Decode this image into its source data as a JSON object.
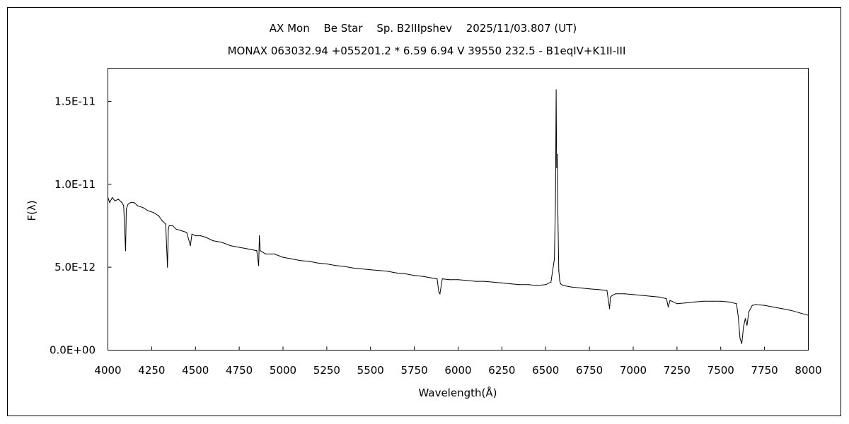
{
  "chart_data": {
    "type": "line",
    "title": "AX Mon　 Be Star　 Sp. B2IIIpshev　 2025/11/03.807 (UT)",
    "subtitle": "MONAX 063032.94 +055201.2 * 6.59 6.94 V 39550 232.5 - B1eqIV+K1II-III",
    "xlabel": "Wavelength(Å)",
    "ylabel": "F(λ)",
    "xlim": [
      4000,
      8000
    ],
    "ylim": [
      0,
      1.7e-11
    ],
    "xticks": [
      4000,
      4250,
      4500,
      4750,
      5000,
      5250,
      5500,
      5750,
      6000,
      6250,
      6500,
      6750,
      7000,
      7250,
      7500,
      7750,
      8000
    ],
    "xtick_labels": [
      "4000",
      "4250",
      "4500",
      "4750",
      "5000",
      "5250",
      "5500",
      "5750",
      "6000",
      "6250",
      "6500",
      "6750",
      "7000",
      "7250",
      "7500",
      "7750",
      "8000"
    ],
    "yticks": [
      0,
      5e-12,
      1e-11,
      1.5e-11
    ],
    "ytick_labels": [
      "0.0E+00",
      "5.0E-12",
      "1.0E-11",
      "1.5E-11"
    ],
    "grid": false,
    "series": [
      {
        "x": [
          4000,
          4010,
          4025,
          4040,
          4060,
          4080,
          4090,
          4101,
          4105,
          4115,
          4130,
          4150,
          4170,
          4200,
          4230,
          4260,
          4290,
          4310,
          4330,
          4340,
          4345,
          4350,
          4370,
          4390,
          4420,
          4450,
          4471,
          4480,
          4500,
          4530,
          4560,
          4600,
          4650,
          4700,
          4750,
          4800,
          4850,
          4861,
          4865,
          4870,
          4900,
          4950,
          5000,
          5050,
          5100,
          5150,
          5200,
          5250,
          5300,
          5350,
          5400,
          5450,
          5500,
          5550,
          5600,
          5650,
          5700,
          5750,
          5800,
          5850,
          5880,
          5890,
          5896,
          5910,
          5950,
          6000,
          6050,
          6100,
          6150,
          6200,
          6250,
          6300,
          6350,
          6400,
          6450,
          6500,
          6530,
          6550,
          6556,
          6560,
          6563,
          6566,
          6570,
          6575,
          6580,
          6585,
          6600,
          6650,
          6700,
          6750,
          6800,
          6850,
          6865,
          6870,
          6880,
          6900,
          6950,
          7000,
          7050,
          7100,
          7150,
          7190,
          7200,
          7210,
          7250,
          7300,
          7350,
          7400,
          7450,
          7500,
          7550,
          7590,
          7600,
          7610,
          7620,
          7630,
          7640,
          7650,
          7660,
          7680,
          7700,
          7750,
          7800,
          7850,
          7900,
          7950,
          8000
        ],
        "y": [
          9.2e-12,
          8.9e-12,
          9.2e-12,
          9e-12,
          9.1e-12,
          8.9e-12,
          8.7e-12,
          6e-12,
          8.5e-12,
          8.8e-12,
          8.9e-12,
          8.9e-12,
          8.7e-12,
          8.6e-12,
          8.4e-12,
          8.3e-12,
          8.1e-12,
          7.8e-12,
          7.6e-12,
          5e-12,
          7.3e-12,
          7.5e-12,
          7.5e-12,
          7.3e-12,
          7.2e-12,
          7.1e-12,
          6.3e-12,
          7e-12,
          6.9e-12,
          6.9e-12,
          6.8e-12,
          6.6e-12,
          6.5e-12,
          6.3e-12,
          6.2e-12,
          6.1e-12,
          6e-12,
          5.1e-12,
          6.9e-12,
          6e-12,
          5.8e-12,
          5.8e-12,
          5.6e-12,
          5.5e-12,
          5.4e-12,
          5.35e-12,
          5.25e-12,
          5.2e-12,
          5.1e-12,
          5.05e-12,
          4.95e-12,
          4.9e-12,
          4.85e-12,
          4.8e-12,
          4.75e-12,
          4.65e-12,
          4.6e-12,
          4.5e-12,
          4.45e-12,
          4.35e-12,
          4.3e-12,
          3.5e-12,
          3.4e-12,
          4.3e-12,
          4.25e-12,
          4.25e-12,
          4.2e-12,
          4.15e-12,
          4.15e-12,
          4.1e-12,
          4.05e-12,
          4e-12,
          3.95e-12,
          3.95e-12,
          3.9e-12,
          3.95e-12,
          4.1e-12,
          5.5e-12,
          9e-12,
          1.57e-11,
          1.1e-11,
          1.18e-11,
          8e-12,
          4.8e-12,
          4.2e-12,
          4e-12,
          3.9e-12,
          3.8e-12,
          3.75e-12,
          3.7e-12,
          3.65e-12,
          3.6e-12,
          2.5e-12,
          3.2e-12,
          3.3e-12,
          3.4e-12,
          3.4e-12,
          3.35e-12,
          3.3e-12,
          3.25e-12,
          3.2e-12,
          3.1e-12,
          2.6e-12,
          3e-12,
          2.8e-12,
          2.85e-12,
          2.9e-12,
          2.95e-12,
          2.95e-12,
          2.95e-12,
          2.9e-12,
          2.8e-12,
          2e-12,
          7e-13,
          4e-13,
          1.4e-12,
          1.9e-12,
          1.5e-12,
          2.3e-12,
          2.7e-12,
          2.75e-12,
          2.7e-12,
          2.6e-12,
          2.5e-12,
          2.4e-12,
          2.25e-12,
          2.1e-12
        ]
      }
    ]
  }
}
